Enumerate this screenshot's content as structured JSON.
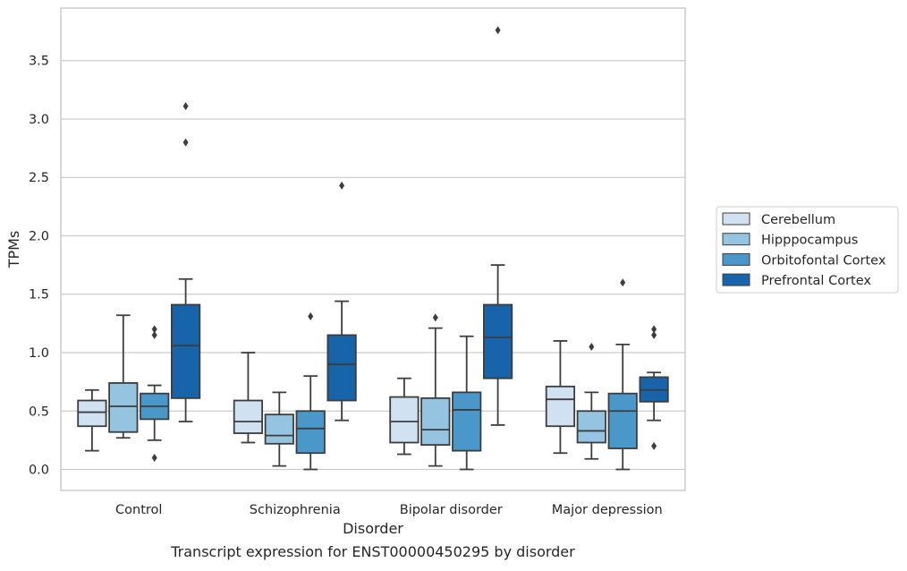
{
  "chart_data": {
    "type": "box",
    "caption": "Transcript expression for ENST00000450295 by disorder",
    "xlabel": "Disorder",
    "ylabel": "TPMs",
    "ylim": [
      -0.18,
      3.95
    ],
    "yticks": [
      "0.0",
      "0.5",
      "1.0",
      "1.5",
      "2.0",
      "2.5",
      "3.0",
      "3.5"
    ],
    "ytick_values": [
      0.0,
      0.5,
      1.0,
      1.5,
      2.0,
      2.5,
      3.0,
      3.5
    ],
    "grid": "horizontal",
    "legend_position": "right",
    "categories": [
      "Control",
      "Schizophrenia",
      "Bipolar disorder",
      "Major depression"
    ],
    "series": [
      {
        "name": "Cerebellum",
        "color": "#d0e1f2",
        "boxes": [
          {
            "whislo": 0.16,
            "q1": 0.37,
            "med": 0.49,
            "q3": 0.59,
            "whishi": 0.68,
            "fliers": []
          },
          {
            "whislo": 0.23,
            "q1": 0.31,
            "med": 0.41,
            "q3": 0.59,
            "whishi": 1.0,
            "fliers": []
          },
          {
            "whislo": 0.13,
            "q1": 0.23,
            "med": 0.41,
            "q3": 0.62,
            "whishi": 0.78,
            "fliers": []
          },
          {
            "whislo": 0.14,
            "q1": 0.37,
            "med": 0.6,
            "q3": 0.71,
            "whishi": 1.1,
            "fliers": []
          }
        ]
      },
      {
        "name": "Hipppocampus",
        "color": "#94c4df",
        "boxes": [
          {
            "whislo": 0.27,
            "q1": 0.32,
            "med": 0.54,
            "q3": 0.74,
            "whishi": 1.32,
            "fliers": []
          },
          {
            "whislo": 0.03,
            "q1": 0.22,
            "med": 0.29,
            "q3": 0.47,
            "whishi": 0.66,
            "fliers": []
          },
          {
            "whislo": 0.03,
            "q1": 0.21,
            "med": 0.34,
            "q3": 0.61,
            "whishi": 1.21,
            "fliers": [
              1.3
            ]
          },
          {
            "whislo": 0.09,
            "q1": 0.23,
            "med": 0.33,
            "q3": 0.5,
            "whishi": 0.66,
            "fliers": [
              1.05
            ]
          }
        ]
      },
      {
        "name": "Orbitofontal Cortex",
        "color": "#4a98c9",
        "boxes": [
          {
            "whislo": 0.25,
            "q1": 0.43,
            "med": 0.54,
            "q3": 0.65,
            "whishi": 0.72,
            "fliers": [
              0.1,
              1.15,
              1.2
            ]
          },
          {
            "whislo": 0.0,
            "q1": 0.14,
            "med": 0.35,
            "q3": 0.5,
            "whishi": 0.8,
            "fliers": [
              1.31
            ]
          },
          {
            "whislo": 0.0,
            "q1": 0.16,
            "med": 0.51,
            "q3": 0.66,
            "whishi": 1.14,
            "fliers": []
          },
          {
            "whislo": 0.0,
            "q1": 0.18,
            "med": 0.5,
            "q3": 0.65,
            "whishi": 1.07,
            "fliers": [
              1.6
            ]
          }
        ]
      },
      {
        "name": "Prefrontal Cortex",
        "color": "#1764ab",
        "boxes": [
          {
            "whislo": 0.41,
            "q1": 0.61,
            "med": 1.06,
            "q3": 1.41,
            "whishi": 1.63,
            "fliers": [
              2.8,
              3.11
            ]
          },
          {
            "whislo": 0.42,
            "q1": 0.59,
            "med": 0.9,
            "q3": 1.15,
            "whishi": 1.44,
            "fliers": [
              2.43
            ]
          },
          {
            "whislo": 0.38,
            "q1": 0.78,
            "med": 1.13,
            "q3": 1.41,
            "whishi": 1.75,
            "fliers": [
              3.76
            ]
          },
          {
            "whislo": 0.42,
            "q1": 0.58,
            "med": 0.68,
            "q3": 0.79,
            "whishi": 0.83,
            "fliers": [
              0.2,
              1.15,
              1.2
            ]
          }
        ]
      }
    ]
  }
}
